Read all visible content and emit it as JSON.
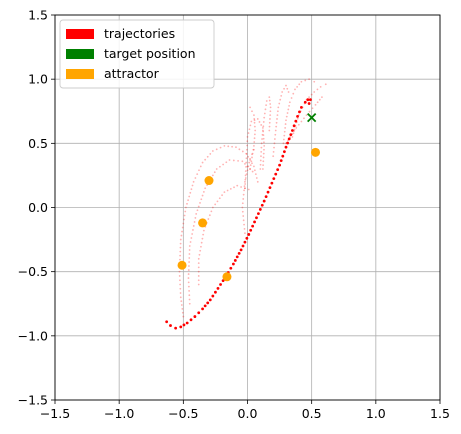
{
  "chart_data": {
    "type": "scatter",
    "title": "",
    "xlabel": "",
    "ylabel": "",
    "xlim": [
      -1.5,
      1.5
    ],
    "ylim": [
      -1.5,
      1.5
    ],
    "xticks": [
      "−1.5",
      "−1.0",
      "−0.5",
      "0.0",
      "0.5",
      "1.0",
      "1.5"
    ],
    "yticks": [
      "−1.5",
      "−1.0",
      "−0.5",
      "0.0",
      "0.5",
      "1.0",
      "1.5"
    ],
    "xtick_values": [
      -1.5,
      -1.0,
      -0.5,
      0.0,
      0.5,
      1.0,
      1.5
    ],
    "ytick_values": [
      -1.5,
      -1.0,
      -0.5,
      0.0,
      0.5,
      1.0,
      1.5
    ],
    "grid": true,
    "legend": {
      "placement": "top-left",
      "entries": [
        {
          "label": "trajectories",
          "color": "#ff0000"
        },
        {
          "label": "target position",
          "color": "#008000"
        },
        {
          "label": "attractor",
          "color": "#ffa500"
        }
      ]
    },
    "colors": {
      "trajectory": "#ff0000",
      "target": "#008000",
      "attractor": "#ffa500"
    },
    "target": {
      "x": 0.5,
      "y": 0.7,
      "marker": "x"
    },
    "attractors": [
      {
        "x": 0.53,
        "y": 0.43
      },
      {
        "x": -0.3,
        "y": 0.21
      },
      {
        "x": -0.35,
        "y": -0.12
      },
      {
        "x": -0.51,
        "y": -0.45
      },
      {
        "x": -0.16,
        "y": -0.54
      }
    ],
    "main_trajectory": [
      [
        -0.63,
        -0.89
      ],
      [
        -0.6,
        -0.92
      ],
      [
        -0.56,
        -0.94
      ],
      [
        -0.52,
        -0.93
      ],
      [
        -0.47,
        -0.9
      ],
      [
        -0.41,
        -0.85
      ],
      [
        -0.35,
        -0.79
      ],
      [
        -0.29,
        -0.72
      ],
      [
        -0.23,
        -0.63
      ],
      [
        -0.17,
        -0.54
      ],
      [
        -0.11,
        -0.44
      ],
      [
        -0.05,
        -0.33
      ],
      [
        0.01,
        -0.21
      ],
      [
        0.07,
        -0.08
      ],
      [
        0.13,
        0.05
      ],
      [
        0.19,
        0.19
      ],
      [
        0.25,
        0.33
      ],
      [
        0.3,
        0.47
      ],
      [
        0.35,
        0.6
      ],
      [
        0.39,
        0.71
      ],
      [
        0.42,
        0.78
      ],
      [
        0.45,
        0.82
      ],
      [
        0.47,
        0.84
      ],
      [
        0.49,
        0.84
      ],
      [
        0.48,
        0.81
      ]
    ],
    "faint_trajectories": [
      [
        [
          -0.5,
          -0.85
        ],
        [
          -0.52,
          -0.7
        ],
        [
          -0.53,
          -0.5
        ],
        [
          -0.52,
          -0.25
        ],
        [
          -0.48,
          0.0
        ],
        [
          -0.42,
          0.2
        ],
        [
          -0.35,
          0.35
        ],
        [
          -0.27,
          0.44
        ],
        [
          -0.18,
          0.48
        ],
        [
          -0.09,
          0.47
        ],
        [
          -0.01,
          0.42
        ],
        [
          0.05,
          0.32
        ],
        [
          0.08,
          0.2
        ]
      ],
      [
        [
          -0.45,
          -0.75
        ],
        [
          -0.46,
          -0.55
        ],
        [
          -0.45,
          -0.3
        ],
        [
          -0.4,
          -0.05
        ],
        [
          -0.33,
          0.15
        ],
        [
          -0.24,
          0.3
        ],
        [
          -0.14,
          0.37
        ],
        [
          -0.04,
          0.36
        ],
        [
          0.04,
          0.28
        ]
      ],
      [
        [
          -0.38,
          -0.6
        ],
        [
          -0.38,
          -0.4
        ],
        [
          -0.34,
          -0.18
        ],
        [
          -0.27,
          0.0
        ],
        [
          -0.18,
          0.12
        ],
        [
          -0.08,
          0.17
        ],
        [
          0.01,
          0.14
        ]
      ],
      [
        [
          -0.02,
          0.15
        ],
        [
          -0.01,
          0.35
        ],
        [
          0.0,
          0.55
        ],
        [
          0.03,
          0.67
        ],
        [
          0.08,
          0.69
        ],
        [
          0.12,
          0.62
        ],
        [
          0.13,
          0.48
        ],
        [
          0.12,
          0.3
        ]
      ],
      [
        [
          0.1,
          0.3
        ],
        [
          0.11,
          0.5
        ],
        [
          0.13,
          0.7
        ],
        [
          0.15,
          0.83
        ],
        [
          0.17,
          0.86
        ],
        [
          0.18,
          0.78
        ],
        [
          0.17,
          0.6
        ]
      ],
      [
        [
          0.2,
          0.4
        ],
        [
          0.22,
          0.6
        ],
        [
          0.24,
          0.78
        ],
        [
          0.27,
          0.9
        ],
        [
          0.3,
          0.95
        ],
        [
          0.32,
          0.9
        ]
      ],
      [
        [
          0.28,
          0.5
        ],
        [
          0.3,
          0.68
        ],
        [
          0.33,
          0.82
        ],
        [
          0.37,
          0.92
        ],
        [
          0.42,
          0.98
        ],
        [
          0.48,
          1.0
        ],
        [
          0.52,
          0.98
        ]
      ],
      [
        [
          0.35,
          0.55
        ],
        [
          0.4,
          0.72
        ],
        [
          0.46,
          0.84
        ],
        [
          0.52,
          0.9
        ],
        [
          0.57,
          0.94
        ],
        [
          0.61,
          0.96
        ]
      ],
      [
        [
          0.3,
          0.5
        ],
        [
          0.38,
          0.62
        ],
        [
          0.46,
          0.72
        ],
        [
          0.53,
          0.8
        ],
        [
          0.58,
          0.86
        ]
      ],
      [
        [
          -0.02,
          -0.2
        ],
        [
          -0.04,
          0.0
        ],
        [
          -0.02,
          0.2
        ],
        [
          0.02,
          0.38
        ],
        [
          0.05,
          0.45
        ]
      ],
      [
        [
          0.02,
          0.3
        ],
        [
          0.05,
          0.48
        ],
        [
          0.06,
          0.6
        ],
        [
          0.05,
          0.72
        ],
        [
          0.02,
          0.78
        ]
      ]
    ]
  }
}
